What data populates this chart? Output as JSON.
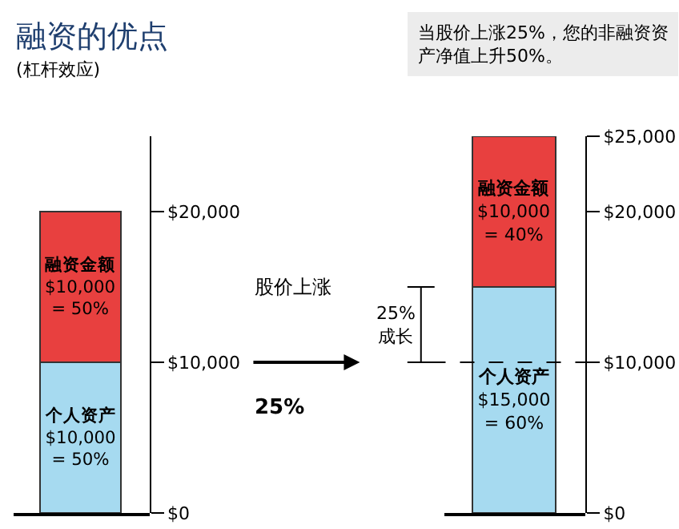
{
  "chart_data": [
    {
      "type": "bar",
      "title": "融资的优点",
      "subtitle": "(杠杆效应)",
      "stacked": true,
      "categories": [
        null
      ],
      "tick_labels": "y",
      "ylim": [
        0,
        25000
      ],
      "yticks": [
        {
          "value": 0,
          "label": "$0"
        },
        {
          "value": 10000,
          "label": "$10,000"
        },
        {
          "value": 20000,
          "label": "$20,000"
        }
      ],
      "series": [
        {
          "color": "#a6daf0",
          "values": [
            10000
          ],
          "value_labels": [
            "个人资产\n$10,000\n= 50%"
          ]
        },
        {
          "color": "#e8403f",
          "values": [
            10000
          ],
          "value_labels": [
            "融资金额\n$10,000\n= 50%"
          ]
        }
      ],
      "annotations": [
        "股价上涨",
        "25%"
      ]
    },
    {
      "type": "bar",
      "stacked": true,
      "categories": [
        null
      ],
      "tick_labels": "y",
      "ylim": [
        0,
        25000
      ],
      "yticks": [
        {
          "value": 0,
          "label": "$0"
        },
        {
          "value": 10000,
          "label": "$10,000"
        },
        {
          "value": 20000,
          "label": "$20,000"
        },
        {
          "value": 25000,
          "label": "$25,000"
        }
      ],
      "series": [
        {
          "color": "#a6daf0",
          "values": [
            15000
          ],
          "value_labels": [
            "个人资产\n$15,000\n= 60%"
          ]
        },
        {
          "color": "#e8403f",
          "values": [
            10000
          ],
          "value_labels": [
            "融资金额\n$10,000\n= 40%"
          ]
        }
      ],
      "ref_lines": [
        {
          "axis": "y",
          "value": 10000,
          "line_style": "dashed",
          "color": "#000000"
        }
      ],
      "annotations": [
        "当股价上涨25%，您的非融资资产净值上升50%。",
        "25%\n成长"
      ]
    }
  ]
}
